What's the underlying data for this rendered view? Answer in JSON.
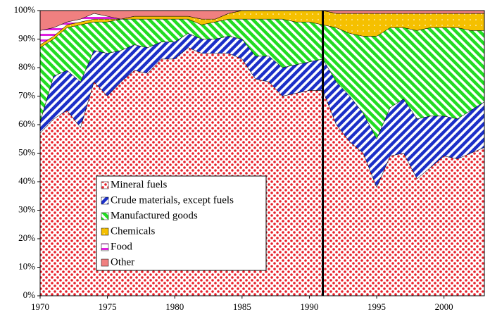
{
  "chart_data": {
    "type": "stacked_area",
    "x": [
      1970,
      1971,
      1972,
      1973,
      1974,
      1975,
      1976,
      1977,
      1978,
      1979,
      1980,
      1981,
      1982,
      1983,
      1984,
      1985,
      1986,
      1987,
      1988,
      1989,
      1990,
      1991,
      1992,
      1993,
      1994,
      1995,
      1996,
      1997,
      1998,
      1999,
      2000,
      2001,
      2002,
      2003
    ],
    "series": [
      {
        "name": "Mineral fuels",
        "color": "#e8202a",
        "values": [
          57,
          62,
          65,
          59,
          75,
          70,
          75,
          79,
          78,
          83,
          83,
          87,
          85,
          85,
          85,
          83,
          76,
          75,
          70,
          71,
          72,
          72,
          60,
          54,
          50,
          38,
          49,
          50,
          41,
          45,
          49,
          48,
          50,
          52
        ]
      },
      {
        "name": "Crude materials, except fuels",
        "color": "#1c2fc8",
        "values": [
          4,
          15,
          14,
          16,
          11,
          15,
          11,
          9,
          9,
          6,
          6,
          5,
          5,
          5,
          6,
          7,
          8,
          9,
          10,
          10,
          10,
          11,
          15,
          16,
          14,
          17,
          17,
          19,
          21,
          18,
          14,
          14,
          15,
          16
        ]
      },
      {
        "name": "Manufactured goods",
        "color": "#22dd22",
        "values": [
          26,
          13,
          15,
          20,
          10,
          11,
          11,
          9,
          10,
          8,
          8,
          5,
          5,
          6,
          6,
          7,
          13,
          13,
          17,
          15,
          14,
          12,
          19,
          22,
          27,
          36,
          28,
          25,
          31,
          31,
          31,
          32,
          28,
          25
        ]
      },
      {
        "name": "Chemicals",
        "color": "#f5c000",
        "values": [
          1,
          1,
          1,
          1,
          1,
          1,
          0,
          1,
          1,
          1,
          1,
          1,
          2,
          1,
          2,
          3,
          3,
          3,
          3,
          4,
          4,
          5,
          5,
          7,
          8,
          8,
          5,
          5,
          6,
          5,
          5,
          5,
          6,
          6
        ]
      },
      {
        "name": "Food",
        "color": "#e020e0",
        "values": [
          5,
          3,
          1,
          1,
          2,
          1,
          0,
          0,
          0,
          0,
          0,
          0,
          0,
          0,
          0,
          0,
          0,
          0,
          0,
          0,
          0,
          0,
          0,
          0,
          0,
          0,
          0,
          0,
          0,
          0,
          0,
          0,
          0,
          0
        ]
      },
      {
        "name": "Other",
        "color": "#f08080",
        "values": [
          7,
          6,
          4,
          3,
          1,
          2,
          3,
          2,
          2,
          2,
          2,
          2,
          3,
          3,
          1,
          0,
          0,
          0,
          0,
          0,
          0,
          0,
          1,
          1,
          1,
          1,
          1,
          1,
          1,
          1,
          1,
          1,
          1,
          1
        ]
      }
    ],
    "xlim": [
      1970,
      2003
    ],
    "xticks": [
      1970,
      1975,
      1980,
      1985,
      1990,
      1995,
      2000
    ],
    "ylim": [
      0,
      100
    ],
    "yticks": [
      {
        "value": 0,
        "label": "0%"
      },
      {
        "value": 10,
        "label": "10%"
      },
      {
        "value": 20,
        "label": "20%"
      },
      {
        "value": 30,
        "label": "30%"
      },
      {
        "value": 40,
        "label": "40%"
      },
      {
        "value": 50,
        "label": "50%"
      },
      {
        "value": 60,
        "label": "60%"
      },
      {
        "value": 70,
        "label": "70%"
      },
      {
        "value": 80,
        "label": "80%"
      },
      {
        "value": 90,
        "label": "90%"
      },
      {
        "value": 100,
        "label": "100%"
      }
    ],
    "vline": 1991,
    "legend": "lower-left"
  }
}
